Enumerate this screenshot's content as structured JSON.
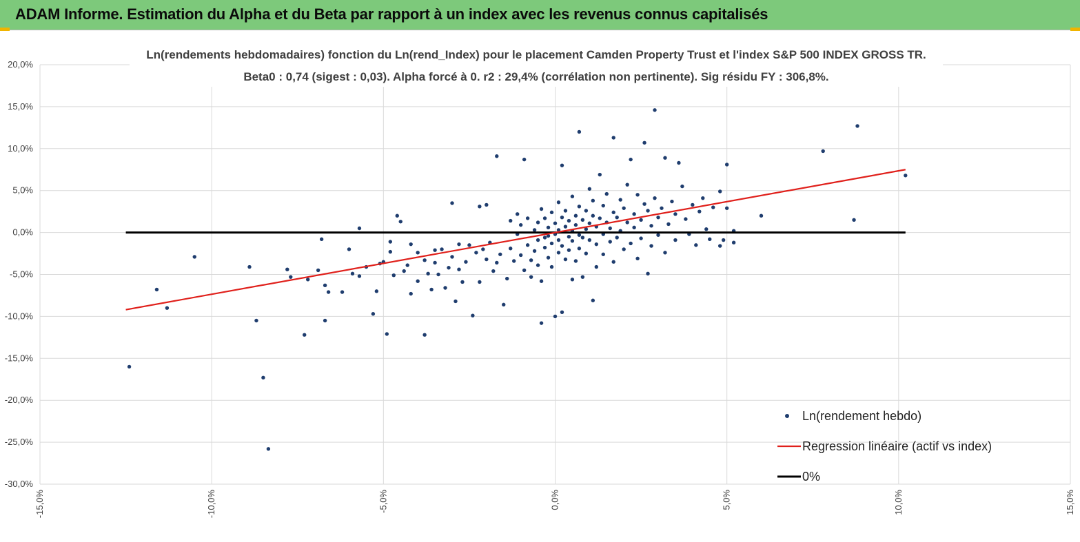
{
  "header": {
    "title": "ADAM Informe. Estimation du Alpha et du Beta par rapport à un index avec les revenus connus capitalisés"
  },
  "colors": {
    "header_bg": "#7dc97b",
    "scatter": "#1f3d6e",
    "regression": "#e0201b",
    "zero_line": "#000000",
    "grid": "#d9d9d9"
  },
  "chart_data": {
    "type": "scatter",
    "title": "Ln(rendements hebdomadaires) fonction du Ln(rend_Index) pour le placement Camden Property Trust et l'index S&P 500 INDEX GROSS TR.",
    "subtitle": "Beta0 : 0,74 (sigest : 0,03). Alpha forcé à 0. r2 : 29,4% (corrélation non pertinente). Sig résidu FY : 306,8%.",
    "xlabel": "",
    "ylabel": "",
    "xlim": [
      -15,
      15
    ],
    "ylim": [
      -30,
      20
    ],
    "x_ticks": [
      -15,
      -10,
      -5,
      0,
      5,
      10,
      15
    ],
    "y_ticks": [
      20,
      15,
      10,
      5,
      0,
      -5,
      -10,
      -15,
      -20,
      -25,
      -30
    ],
    "x_tick_labels": [
      "-15,0%",
      "-10,0%",
      "-5,0%",
      "0,0%",
      "5,0%",
      "10,0%",
      "15,0%"
    ],
    "y_tick_labels": [
      "20,0%",
      "15,0%",
      "10,0%",
      "5,0%",
      "0,0%",
      "-5,0%",
      "-10,0%",
      "-15,0%",
      "-20,0%",
      "-25,0%",
      "-30,0%"
    ],
    "grid": true,
    "legend_position": "bottom-right",
    "series": [
      {
        "name": "Ln(rendement hebdo)",
        "type": "scatter",
        "points": [
          [
            -12.4,
            -16.0
          ],
          [
            -11.6,
            -6.8
          ],
          [
            -11.3,
            -9.0
          ],
          [
            -10.5,
            -2.9
          ],
          [
            -8.9,
            -4.1
          ],
          [
            -8.7,
            -10.5
          ],
          [
            -8.5,
            -17.3
          ],
          [
            -8.35,
            -25.8
          ],
          [
            -7.8,
            -4.4
          ],
          [
            -7.7,
            -5.3
          ],
          [
            -7.3,
            -12.2
          ],
          [
            -7.2,
            -5.6
          ],
          [
            -6.9,
            -4.5
          ],
          [
            -6.8,
            -0.8
          ],
          [
            -6.7,
            -6.3
          ],
          [
            -6.7,
            -10.5
          ],
          [
            -6.6,
            -7.1
          ],
          [
            -6.2,
            -7.1
          ],
          [
            -6.0,
            -2.0
          ],
          [
            -5.9,
            -4.9
          ],
          [
            -5.7,
            -5.2
          ],
          [
            -5.7,
            0.5
          ],
          [
            -5.5,
            -4.1
          ],
          [
            -5.3,
            -9.7
          ],
          [
            -5.2,
            -7.0
          ],
          [
            -5.1,
            -3.7
          ],
          [
            -5.0,
            -3.5
          ],
          [
            -4.9,
            -12.1
          ],
          [
            -4.8,
            -1.1
          ],
          [
            -4.8,
            -2.3
          ],
          [
            -4.7,
            -5.1
          ],
          [
            -4.6,
            2.0
          ],
          [
            -4.5,
            1.3
          ],
          [
            -4.4,
            -4.6
          ],
          [
            -4.3,
            -3.9
          ],
          [
            -4.2,
            -7.3
          ],
          [
            -4.2,
            -1.4
          ],
          [
            -4.0,
            -2.4
          ],
          [
            -4.0,
            -5.8
          ],
          [
            -3.8,
            -12.2
          ],
          [
            -3.8,
            -3.3
          ],
          [
            -3.7,
            -4.9
          ],
          [
            -3.6,
            -6.8
          ],
          [
            -3.5,
            -2.1
          ],
          [
            -3.5,
            -3.6
          ],
          [
            -3.4,
            -5.0
          ],
          [
            -3.3,
            -2.0
          ],
          [
            -3.2,
            -6.6
          ],
          [
            -3.1,
            -4.2
          ],
          [
            -3.0,
            3.5
          ],
          [
            -3.0,
            -2.9
          ],
          [
            -2.9,
            -8.2
          ],
          [
            -2.8,
            -1.4
          ],
          [
            -2.8,
            -4.4
          ],
          [
            -2.7,
            -5.9
          ],
          [
            -2.6,
            -3.5
          ],
          [
            -2.5,
            -1.5
          ],
          [
            -2.4,
            -9.9
          ],
          [
            -2.3,
            -2.4
          ],
          [
            -2.2,
            3.1
          ],
          [
            -2.2,
            -5.9
          ],
          [
            -2.1,
            -2.0
          ],
          [
            -2.0,
            -3.2
          ],
          [
            -2.0,
            3.3
          ],
          [
            -1.9,
            -1.2
          ],
          [
            -1.8,
            -4.6
          ],
          [
            -1.7,
            -3.6
          ],
          [
            -1.7,
            9.1
          ],
          [
            -1.6,
            -2.6
          ],
          [
            -1.5,
            -8.6
          ],
          [
            -1.4,
            -5.5
          ],
          [
            -1.3,
            -1.9
          ],
          [
            -1.3,
            1.4
          ],
          [
            -1.2,
            -3.4
          ],
          [
            -1.1,
            -0.2
          ],
          [
            -1.1,
            2.2
          ],
          [
            -1.0,
            -2.7
          ],
          [
            -1.0,
            0.9
          ],
          [
            -0.9,
            -4.5
          ],
          [
            -0.9,
            8.7
          ],
          [
            -0.8,
            1.7
          ],
          [
            -0.8,
            -1.5
          ],
          [
            -0.7,
            -3.3
          ],
          [
            -0.7,
            -5.3
          ],
          [
            -0.6,
            0.3
          ],
          [
            -0.6,
            -2.2
          ],
          [
            -0.5,
            1.2
          ],
          [
            -0.5,
            -0.9
          ],
          [
            -0.5,
            -3.9
          ],
          [
            -0.4,
            -10.8
          ],
          [
            -0.4,
            2.8
          ],
          [
            -0.4,
            -5.8
          ],
          [
            -0.3,
            -0.6
          ],
          [
            -0.3,
            1.7
          ],
          [
            -0.3,
            -1.8
          ],
          [
            -0.2,
            -3.0
          ],
          [
            -0.2,
            0.6
          ],
          [
            -0.2,
            -0.4
          ],
          [
            -0.1,
            2.4
          ],
          [
            -0.1,
            -1.3
          ],
          [
            -0.1,
            -4.1
          ],
          [
            0.0,
            -0.2
          ],
          [
            0.0,
            1.1
          ],
          [
            0.0,
            -10.0
          ],
          [
            0.1,
            -2.4
          ],
          [
            0.1,
            3.6
          ],
          [
            0.1,
            0.3
          ],
          [
            0.1,
            -0.9
          ],
          [
            0.2,
            -9.5
          ],
          [
            0.2,
            1.8
          ],
          [
            0.2,
            -1.6
          ],
          [
            0.2,
            8.0
          ],
          [
            0.3,
            0.7
          ],
          [
            0.3,
            -3.2
          ],
          [
            0.3,
            2.6
          ],
          [
            0.4,
            -0.5
          ],
          [
            0.4,
            1.4
          ],
          [
            0.4,
            -2.1
          ],
          [
            0.5,
            -5.6
          ],
          [
            0.5,
            0.2
          ],
          [
            0.5,
            4.3
          ],
          [
            0.5,
            -1.0
          ],
          [
            0.6,
            2.0
          ],
          [
            0.6,
            -3.4
          ],
          [
            0.6,
            0.9
          ],
          [
            0.7,
            12.0
          ],
          [
            0.7,
            -0.3
          ],
          [
            0.7,
            3.1
          ],
          [
            0.7,
            -1.9
          ],
          [
            0.8,
            1.5
          ],
          [
            0.8,
            -5.3
          ],
          [
            0.8,
            -0.6
          ],
          [
            0.9,
            2.6
          ],
          [
            0.9,
            0.4
          ],
          [
            0.9,
            -2.5
          ],
          [
            1.0,
            5.2
          ],
          [
            1.0,
            1.1
          ],
          [
            1.0,
            -0.9
          ],
          [
            1.1,
            -8.1
          ],
          [
            1.1,
            2.0
          ],
          [
            1.1,
            3.8
          ],
          [
            1.2,
            -1.4
          ],
          [
            1.2,
            0.7
          ],
          [
            1.2,
            -4.1
          ],
          [
            1.3,
            1.7
          ],
          [
            1.3,
            6.9
          ],
          [
            1.4,
            -0.2
          ],
          [
            1.4,
            3.2
          ],
          [
            1.4,
            -2.6
          ],
          [
            1.5,
            1.2
          ],
          [
            1.5,
            4.6
          ],
          [
            1.6,
            -1.1
          ],
          [
            1.6,
            0.5
          ],
          [
            1.7,
            2.4
          ],
          [
            1.7,
            -3.5
          ],
          [
            1.7,
            11.3
          ],
          [
            1.8,
            1.8
          ],
          [
            1.8,
            -0.6
          ],
          [
            1.9,
            3.9
          ],
          [
            1.9,
            0.2
          ],
          [
            2.0,
            -2.0
          ],
          [
            2.0,
            2.9
          ],
          [
            2.1,
            1.2
          ],
          [
            2.1,
            5.7
          ],
          [
            2.2,
            -1.3
          ],
          [
            2.2,
            8.7
          ],
          [
            2.3,
            2.2
          ],
          [
            2.3,
            0.6
          ],
          [
            2.4,
            -3.1
          ],
          [
            2.4,
            4.5
          ],
          [
            2.5,
            1.5
          ],
          [
            2.5,
            -0.7
          ],
          [
            2.6,
            3.4
          ],
          [
            2.6,
            10.7
          ],
          [
            2.7,
            -4.9
          ],
          [
            2.7,
            2.6
          ],
          [
            2.8,
            0.8
          ],
          [
            2.8,
            -1.6
          ],
          [
            2.9,
            14.6
          ],
          [
            2.9,
            4.1
          ],
          [
            3.0,
            1.8
          ],
          [
            3.0,
            -0.3
          ],
          [
            3.1,
            2.9
          ],
          [
            3.2,
            -2.4
          ],
          [
            3.2,
            8.9
          ],
          [
            3.3,
            1.0
          ],
          [
            3.4,
            3.7
          ],
          [
            3.5,
            -0.9
          ],
          [
            3.5,
            2.2
          ],
          [
            3.6,
            8.3
          ],
          [
            3.7,
            5.5
          ],
          [
            3.8,
            1.6
          ],
          [
            3.9,
            -0.2
          ],
          [
            4.0,
            3.3
          ],
          [
            4.1,
            -1.5
          ],
          [
            4.2,
            2.5
          ],
          [
            4.3,
            4.1
          ],
          [
            4.4,
            0.4
          ],
          [
            4.5,
            -0.8
          ],
          [
            4.6,
            3.0
          ],
          [
            4.8,
            4.9
          ],
          [
            4.8,
            -1.6
          ],
          [
            4.9,
            -0.9
          ],
          [
            5.0,
            8.1
          ],
          [
            5.0,
            2.9
          ],
          [
            5.2,
            -1.2
          ],
          [
            5.2,
            0.2
          ],
          [
            6.0,
            2.0
          ],
          [
            7.8,
            9.7
          ],
          [
            8.7,
            1.5
          ],
          [
            8.8,
            12.7
          ],
          [
            10.2,
            6.8
          ]
        ]
      },
      {
        "name": "Regression linéaire (actif vs index)",
        "type": "line",
        "x": [
          -12.5,
          10.2
        ],
        "y": [
          -9.2,
          7.5
        ]
      },
      {
        "name": "0%",
        "type": "line",
        "x": [
          -12.5,
          10.2
        ],
        "y": [
          0,
          0
        ]
      }
    ]
  }
}
